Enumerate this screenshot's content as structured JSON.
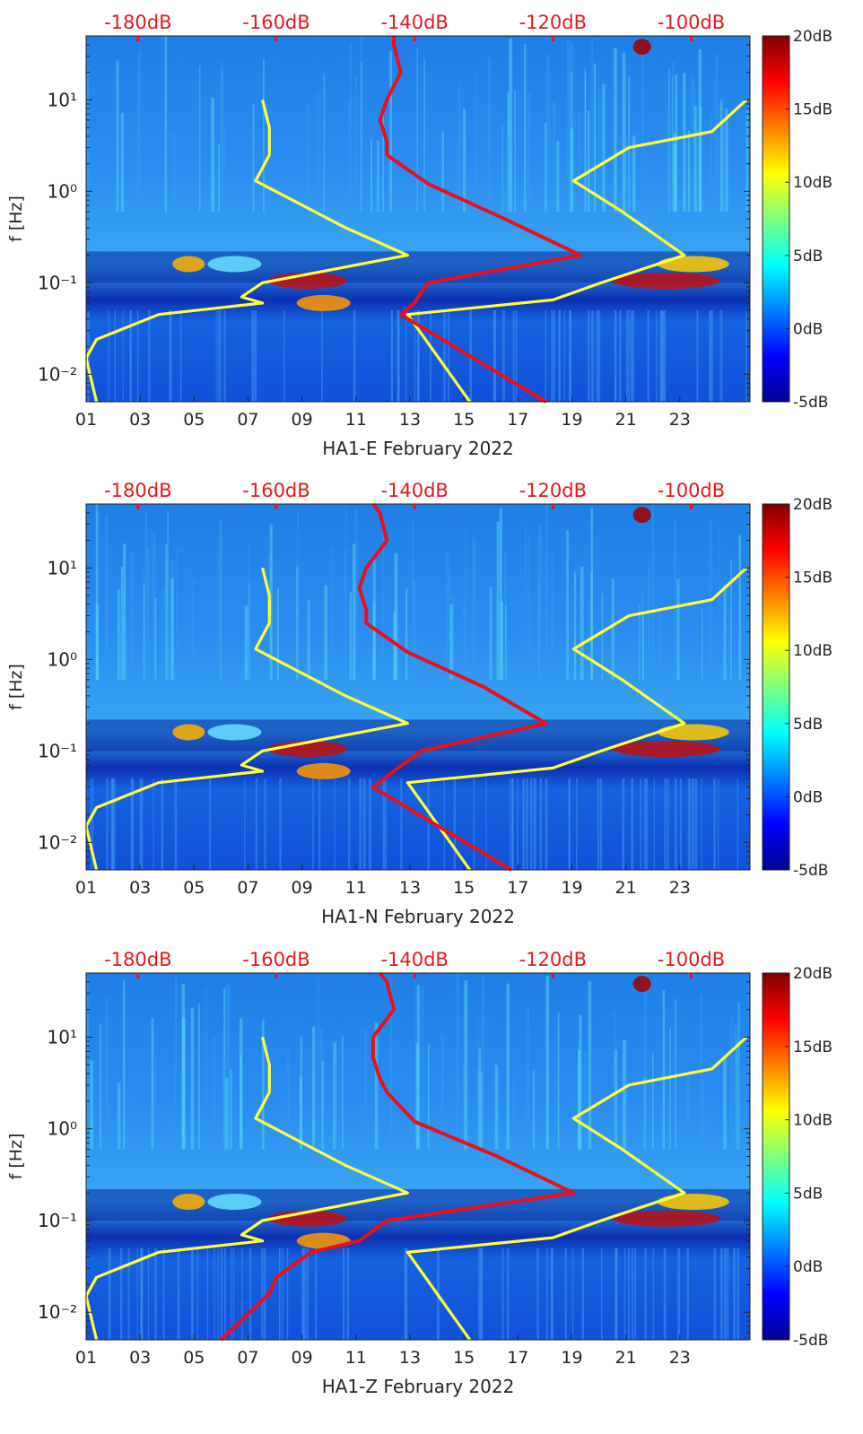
{
  "chart_data": [
    {
      "type": "heatmap",
      "title": "",
      "xlabel": "HA1-E February 2022",
      "ylabel": "f [Hz]",
      "x_ticks": [
        "01",
        "03",
        "05",
        "07",
        "09",
        "11",
        "13",
        "15",
        "17",
        "19",
        "21",
        "23"
      ],
      "x_range_days": [
        1,
        25.6
      ],
      "y_ticks": [
        "10⁻²",
        "10⁻¹",
        "10⁰",
        "10¹"
      ],
      "y_range_hz": [
        0.005,
        50
      ],
      "top_axis_ticks": [
        "-180dB",
        "-160dB",
        "-140dB",
        "-120dB",
        "-100dB"
      ],
      "top_axis_range_db": [
        -187.5,
        -91.5
      ],
      "colorbar_ticks": [
        "20dB",
        "15dB",
        "10dB",
        "5dB",
        "0dB",
        "-5dB"
      ],
      "colorbar_range_db": [
        -5,
        20
      ],
      "series": [
        {
          "name": "yellow noise model (low)",
          "color": "#ffff3c",
          "freq_hz": [
            0.005,
            0.015,
            0.024,
            0.045,
            0.06,
            0.07,
            0.1,
            0.2,
            0.4,
            1.3,
            2.5,
            5,
            10
          ],
          "db": [
            -186,
            -187.5,
            -186,
            -177,
            -162,
            -165,
            -162,
            -141,
            -150,
            -163,
            -161,
            -161,
            -162
          ]
        },
        {
          "name": "yellow noise model (high)",
          "color": "#ffff3c",
          "freq_hz": [
            0.005,
            0.045,
            0.065,
            0.1,
            0.2,
            0.6,
            1.3,
            3,
            4.5,
            10
          ],
          "db": [
            -132,
            -141,
            -120,
            -113,
            -101,
            -110,
            -117,
            -109,
            -97,
            -92
          ]
        },
        {
          "name": "red mean spectrum",
          "color": "#e8101a",
          "freq_hz": [
            0.005,
            0.045,
            0.06,
            0.08,
            0.1,
            0.2,
            0.5,
            1.2,
            2.5,
            3.5,
            6,
            10,
            20,
            40,
            50
          ],
          "db": [
            -121,
            -142,
            -140,
            -139,
            -138,
            -116,
            -127,
            -138,
            -144,
            -144,
            -145,
            -144,
            -142,
            -143,
            -143
          ]
        }
      ]
    },
    {
      "type": "heatmap",
      "title": "",
      "xlabel": "HA1-N February 2022",
      "ylabel": "f [Hz]",
      "x_ticks": [
        "01",
        "03",
        "05",
        "07",
        "09",
        "11",
        "13",
        "15",
        "17",
        "19",
        "21",
        "23"
      ],
      "x_range_days": [
        1,
        25.6
      ],
      "y_ticks": [
        "10⁻²",
        "10⁻¹",
        "10⁰",
        "10¹"
      ],
      "y_range_hz": [
        0.005,
        50
      ],
      "top_axis_ticks": [
        "-180dB",
        "-160dB",
        "-140dB",
        "-120dB",
        "-100dB"
      ],
      "top_axis_range_db": [
        -187.5,
        -91.5
      ],
      "colorbar_ticks": [
        "20dB",
        "15dB",
        "10dB",
        "5dB",
        "0dB",
        "-5dB"
      ],
      "colorbar_range_db": [
        -5,
        20
      ],
      "series": [
        {
          "name": "yellow noise model (low)",
          "color": "#ffff3c",
          "freq_hz": [
            0.005,
            0.015,
            0.024,
            0.045,
            0.06,
            0.07,
            0.1,
            0.2,
            0.4,
            1.3,
            2.5,
            5,
            10
          ],
          "db": [
            -186,
            -187.5,
            -186,
            -177,
            -162,
            -165,
            -162,
            -141,
            -150,
            -163,
            -161,
            -161,
            -162
          ]
        },
        {
          "name": "yellow noise model (high)",
          "color": "#ffff3c",
          "freq_hz": [
            0.005,
            0.045,
            0.065,
            0.1,
            0.2,
            0.6,
            1.3,
            3,
            4.5,
            10
          ],
          "db": [
            -132,
            -141,
            -120,
            -113,
            -101,
            -110,
            -117,
            -109,
            -97,
            -92
          ]
        },
        {
          "name": "red mean spectrum",
          "color": "#e8101a",
          "freq_hz": [
            0.005,
            0.04,
            0.06,
            0.1,
            0.2,
            0.5,
            1.2,
            2.5,
            3.5,
            6,
            10,
            20,
            40,
            50
          ],
          "db": [
            -126,
            -146,
            -143,
            -139,
            -121,
            -130,
            -141,
            -147,
            -147,
            -148,
            -147,
            -144,
            -145,
            -146
          ]
        }
      ]
    },
    {
      "type": "heatmap",
      "title": "",
      "xlabel": "HA1-Z February 2022",
      "ylabel": "f [Hz]",
      "x_ticks": [
        "01",
        "03",
        "05",
        "07",
        "09",
        "11",
        "13",
        "15",
        "17",
        "19",
        "21",
        "23"
      ],
      "x_range_days": [
        1,
        25.6
      ],
      "y_ticks": [
        "10⁻²",
        "10⁻¹",
        "10⁰",
        "10¹"
      ],
      "y_range_hz": [
        0.005,
        50
      ],
      "top_axis_ticks": [
        "-180dB",
        "-160dB",
        "-140dB",
        "-120dB",
        "-100dB"
      ],
      "top_axis_range_db": [
        -187.5,
        -91.5
      ],
      "colorbar_ticks": [
        "20dB",
        "15dB",
        "10dB",
        "5dB",
        "0dB",
        "-5dB"
      ],
      "colorbar_range_db": [
        -5,
        20
      ],
      "series": [
        {
          "name": "yellow noise model (low)",
          "color": "#ffff3c",
          "freq_hz": [
            0.005,
            0.015,
            0.024,
            0.045,
            0.06,
            0.07,
            0.1,
            0.2,
            0.4,
            1.3,
            2.5,
            5,
            10
          ],
          "db": [
            -186,
            -187.5,
            -186,
            -177,
            -162,
            -165,
            -162,
            -141,
            -150,
            -163,
            -161,
            -161,
            -162
          ]
        },
        {
          "name": "yellow noise model (high)",
          "color": "#ffff3c",
          "freq_hz": [
            0.005,
            0.045,
            0.065,
            0.1,
            0.2,
            0.6,
            1.3,
            3,
            4.5,
            10
          ],
          "db": [
            -132,
            -141,
            -120,
            -113,
            -101,
            -110,
            -117,
            -109,
            -97,
            -92
          ]
        },
        {
          "name": "red mean spectrum",
          "color": "#e8101a",
          "freq_hz": [
            0.005,
            0.016,
            0.024,
            0.045,
            0.06,
            0.1,
            0.2,
            0.5,
            1.2,
            2.5,
            3.5,
            6,
            10,
            20,
            40,
            50
          ],
          "db": [
            -168,
            -161,
            -160,
            -155,
            -148,
            -144,
            -117,
            -128,
            -140,
            -144,
            -145,
            -146,
            -146,
            -143,
            -144,
            -145
          ]
        }
      ]
    }
  ]
}
